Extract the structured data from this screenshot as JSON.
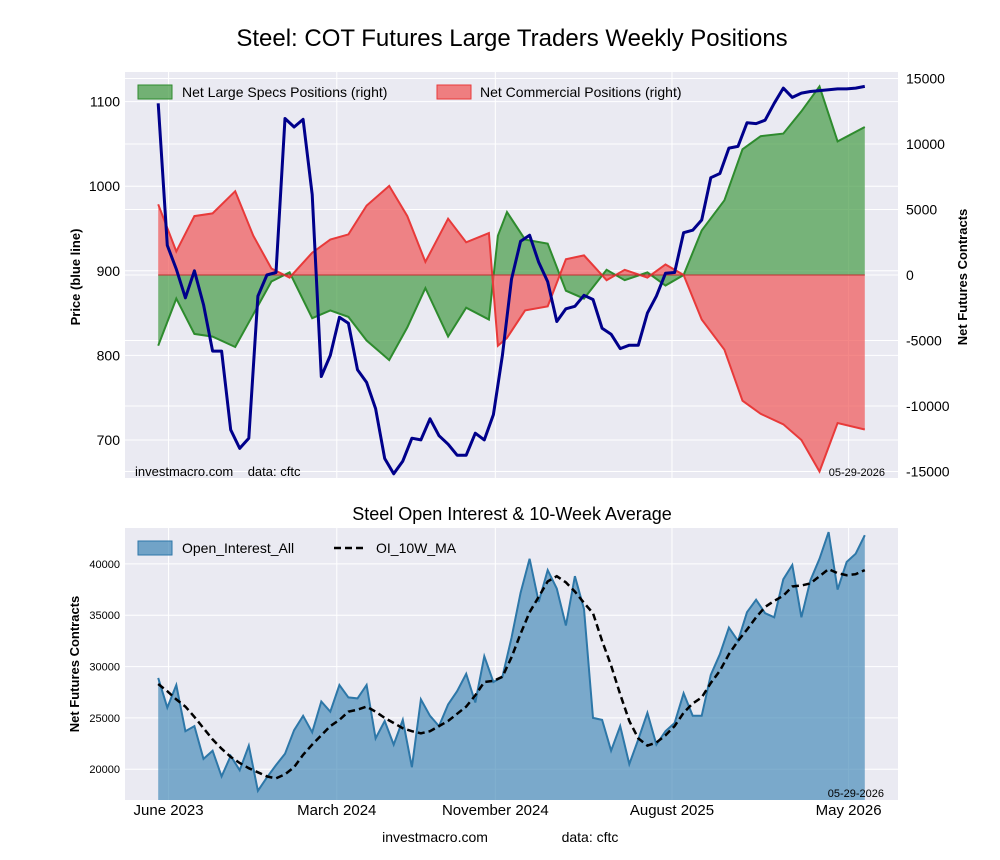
{
  "figure": {
    "title": "Steel: COT Futures Large Traders Weekly Positions",
    "footer_left": "investmacro.com",
    "footer_right": "data: cftc"
  },
  "chart_data": [
    {
      "type": "line+area",
      "title": "",
      "ylabel_left": "Price (blue line)",
      "ylabel_right": "Net Futures Contracts",
      "ylim_left": [
        655,
        1135
      ],
      "ylim_right": [
        -15500,
        15500
      ],
      "yticks_left": [
        700,
        800,
        900,
        1000,
        1100
      ],
      "yticks_right": [
        -15000,
        -10000,
        -5000,
        0,
        5000,
        10000,
        15000
      ],
      "grid": true,
      "legend_position": "top-left",
      "watermark_left": "investmacro.com    data: cftc",
      "date_label": "05-29-2026",
      "x_range": [
        "2023-05-30",
        "2026-05-26"
      ],
      "series": [
        {
          "name": "Net Large Specs Positions (right)",
          "kind": "area",
          "color": "#4a9e4a",
          "x": [
            "2023-05-30",
            "2023-06-27",
            "2023-07-25",
            "2023-08-22",
            "2023-09-26",
            "2023-10-24",
            "2023-11-21",
            "2023-12-19",
            "2024-01-23",
            "2024-02-20",
            "2024-03-19",
            "2024-04-16",
            "2024-05-21",
            "2024-06-18",
            "2024-07-16",
            "2024-08-20",
            "2024-09-17",
            "2024-10-22",
            "2024-11-05",
            "2024-11-19",
            "2024-12-17",
            "2025-01-21",
            "2025-02-18",
            "2025-03-18",
            "2025-04-22",
            "2025-05-20",
            "2025-06-24",
            "2025-07-22",
            "2025-08-19",
            "2025-09-16",
            "2025-10-21",
            "2025-11-18",
            "2025-12-16",
            "2026-01-20",
            "2026-02-17",
            "2026-03-17",
            "2026-04-14",
            "2026-05-26"
          ],
          "values": [
            -5400,
            -1800,
            -4500,
            -4700,
            -5500,
            -3000,
            -500,
            200,
            -3300,
            -2700,
            -3200,
            -5000,
            -6500,
            -4000,
            -1000,
            -4700,
            -2500,
            -3400,
            3000,
            4800,
            2700,
            2400,
            -1200,
            -1800,
            400,
            -400,
            200,
            -800,
            0,
            3400,
            5700,
            9600,
            10600,
            10800,
            12500,
            14400,
            10200,
            11300
          ]
        },
        {
          "name": "Net Commercial Positions (right)",
          "kind": "area",
          "color": "#f05a5a",
          "x": [
            "2023-05-30",
            "2023-06-27",
            "2023-07-25",
            "2023-08-22",
            "2023-09-26",
            "2023-10-24",
            "2023-11-21",
            "2023-12-19",
            "2024-01-23",
            "2024-02-20",
            "2024-03-19",
            "2024-04-16",
            "2024-05-21",
            "2024-06-18",
            "2024-07-16",
            "2024-08-20",
            "2024-09-17",
            "2024-10-22",
            "2024-11-05",
            "2024-11-19",
            "2024-12-17",
            "2025-01-21",
            "2025-02-18",
            "2025-03-18",
            "2025-04-22",
            "2025-05-20",
            "2025-06-24",
            "2025-07-22",
            "2025-08-19",
            "2025-09-16",
            "2025-10-21",
            "2025-11-18",
            "2025-12-16",
            "2026-01-20",
            "2026-02-17",
            "2026-03-17",
            "2026-04-14",
            "2026-05-26"
          ],
          "values": [
            5400,
            1800,
            4500,
            4700,
            6400,
            3000,
            500,
            -200,
            1700,
            2700,
            3100,
            5300,
            6800,
            4500,
            1000,
            4300,
            2500,
            3200,
            -5400,
            -4800,
            -2700,
            -2400,
            1200,
            1500,
            -400,
            400,
            -200,
            800,
            0,
            -3400,
            -5700,
            -9600,
            -10600,
            -11400,
            -12600,
            -15000,
            -11300,
            -11800
          ]
        },
        {
          "name": "Price",
          "kind": "line",
          "axis": "left",
          "color": "#00008b",
          "x": [
            "2023-05-30",
            "2023-06-13",
            "2023-06-27",
            "2023-07-11",
            "2023-07-25",
            "2023-08-08",
            "2023-08-22",
            "2023-09-05",
            "2023-09-19",
            "2023-10-03",
            "2023-10-17",
            "2023-10-31",
            "2023-11-14",
            "2023-11-28",
            "2023-12-12",
            "2023-12-26",
            "2024-01-09",
            "2024-01-23",
            "2024-02-06",
            "2024-02-20",
            "2024-03-05",
            "2024-03-19",
            "2024-04-02",
            "2024-04-16",
            "2024-04-30",
            "2024-05-14",
            "2024-05-28",
            "2024-06-11",
            "2024-06-25",
            "2024-07-09",
            "2024-07-23",
            "2024-08-06",
            "2024-08-20",
            "2024-09-03",
            "2024-09-17",
            "2024-10-01",
            "2024-10-15",
            "2024-10-29",
            "2024-11-12",
            "2024-11-26",
            "2024-12-10",
            "2024-12-24",
            "2025-01-07",
            "2025-01-21",
            "2025-02-04",
            "2025-02-18",
            "2025-03-04",
            "2025-03-18",
            "2025-04-01",
            "2025-04-15",
            "2025-04-29",
            "2025-05-13",
            "2025-05-27",
            "2025-06-10",
            "2025-06-24",
            "2025-07-08",
            "2025-07-22",
            "2025-08-05",
            "2025-08-19",
            "2025-09-02",
            "2025-09-16",
            "2025-09-30",
            "2025-10-14",
            "2025-10-28",
            "2025-11-11",
            "2025-11-25",
            "2025-12-09",
            "2025-12-23",
            "2026-01-06",
            "2026-01-20",
            "2026-02-03",
            "2026-02-17",
            "2026-03-03",
            "2026-03-17",
            "2026-03-31",
            "2026-04-14",
            "2026-04-28",
            "2026-05-12",
            "2026-05-26"
          ],
          "values": [
            1098,
            930,
            902,
            868,
            900,
            860,
            805,
            805,
            712,
            690,
            702,
            870,
            895,
            898,
            1080,
            1070,
            1079,
            990,
            775,
            800,
            845,
            838,
            783,
            768,
            737,
            678,
            660,
            675,
            702,
            700,
            725,
            705,
            695,
            682,
            682,
            708,
            700,
            730,
            800,
            890,
            935,
            942,
            910,
            887,
            840,
            855,
            858,
            871,
            866,
            832,
            825,
            808,
            812,
            812,
            850,
            870,
            897,
            898,
            945,
            948,
            960,
            1010,
            1015,
            1045,
            1047,
            1075,
            1074,
            1078,
            1098,
            1116,
            1105,
            1110,
            1112,
            1113,
            1114,
            1115,
            1115,
            1116,
            1118
          ]
        }
      ]
    },
    {
      "type": "area+line",
      "title": "Steel Open Interest & 10-Week Average",
      "ylabel": "Net Futures Contracts",
      "ylim": [
        17000,
        43500
      ],
      "yticks": [
        20000,
        25000,
        30000,
        35000,
        40000
      ],
      "xticks": [
        "June 2023",
        "March 2024",
        "November 2024",
        "August 2025",
        "May 2026"
      ],
      "grid": true,
      "legend_position": "top-left",
      "date_label": "05-29-2026",
      "series": [
        {
          "name": "Open_Interest_All",
          "kind": "area",
          "color": "#3d85b5",
          "x": [
            "2023-05-30",
            "2023-06-13",
            "2023-06-27",
            "2023-07-11",
            "2023-07-25",
            "2023-08-08",
            "2023-08-22",
            "2023-09-05",
            "2023-09-19",
            "2023-10-03",
            "2023-10-17",
            "2023-10-31",
            "2023-11-14",
            "2023-11-28",
            "2023-12-12",
            "2023-12-26",
            "2024-01-09",
            "2024-01-23",
            "2024-02-06",
            "2024-02-20",
            "2024-03-05",
            "2024-03-19",
            "2024-04-02",
            "2024-04-16",
            "2024-04-30",
            "2024-05-14",
            "2024-05-28",
            "2024-06-11",
            "2024-06-25",
            "2024-07-09",
            "2024-07-23",
            "2024-08-06",
            "2024-08-20",
            "2024-09-03",
            "2024-09-17",
            "2024-10-01",
            "2024-10-15",
            "2024-10-29",
            "2024-11-12",
            "2024-11-26",
            "2024-12-10",
            "2024-12-24",
            "2025-01-07",
            "2025-01-21",
            "2025-02-04",
            "2025-02-18",
            "2025-03-04",
            "2025-03-18",
            "2025-04-01",
            "2025-04-15",
            "2025-04-29",
            "2025-05-13",
            "2025-05-27",
            "2025-06-10",
            "2025-06-24",
            "2025-07-08",
            "2025-07-22",
            "2025-08-05",
            "2025-08-19",
            "2025-09-02",
            "2025-09-16",
            "2025-09-30",
            "2025-10-14",
            "2025-10-28",
            "2025-11-11",
            "2025-11-25",
            "2025-12-09",
            "2025-12-23",
            "2026-01-06",
            "2026-01-20",
            "2026-02-03",
            "2026-02-17",
            "2026-03-03",
            "2026-03-17",
            "2026-03-31",
            "2026-04-14",
            "2026-04-28",
            "2026-05-12",
            "2026-05-26"
          ],
          "values": [
            28900,
            26000,
            28200,
            23700,
            24200,
            21000,
            21800,
            19300,
            21300,
            19900,
            22300,
            17900,
            19200,
            20400,
            21500,
            23800,
            25200,
            23600,
            26600,
            25600,
            28200,
            27000,
            26900,
            28200,
            23000,
            24700,
            22400,
            24800,
            20200,
            26800,
            25200,
            24200,
            26300,
            27600,
            29300,
            26500,
            31000,
            28500,
            29000,
            32800,
            37200,
            40500,
            36300,
            39400,
            37600,
            34000,
            38800,
            35600,
            25000,
            24800,
            21800,
            24200,
            20500,
            22900,
            25500,
            22400,
            23700,
            24500,
            27400,
            25200,
            25200,
            29200,
            31200,
            33800,
            32500,
            35300,
            36500,
            35200,
            34800,
            38500,
            39900,
            34800,
            38400,
            40500,
            43100,
            37500,
            40200,
            41000,
            42800
          ]
        },
        {
          "name": "OI_10W_MA",
          "kind": "line",
          "color": "#000000",
          "dashed": true,
          "x": [
            "2023-05-30",
            "2023-06-13",
            "2023-06-27",
            "2023-07-11",
            "2023-07-25",
            "2023-08-08",
            "2023-08-22",
            "2023-09-05",
            "2023-09-19",
            "2023-10-03",
            "2023-10-17",
            "2023-10-31",
            "2023-11-14",
            "2023-11-28",
            "2023-12-12",
            "2023-12-26",
            "2024-01-09",
            "2024-01-23",
            "2024-02-06",
            "2024-02-20",
            "2024-03-05",
            "2024-03-19",
            "2024-04-02",
            "2024-04-16",
            "2024-04-30",
            "2024-05-14",
            "2024-05-28",
            "2024-06-11",
            "2024-06-25",
            "2024-07-09",
            "2024-07-23",
            "2024-08-06",
            "2024-08-20",
            "2024-09-03",
            "2024-09-17",
            "2024-10-01",
            "2024-10-15",
            "2024-10-29",
            "2024-11-12",
            "2024-11-26",
            "2024-12-10",
            "2024-12-24",
            "2025-01-07",
            "2025-01-21",
            "2025-02-04",
            "2025-02-18",
            "2025-03-04",
            "2025-03-18",
            "2025-04-01",
            "2025-04-15",
            "2025-04-29",
            "2025-05-13",
            "2025-05-27",
            "2025-06-10",
            "2025-06-24",
            "2025-07-08",
            "2025-07-22",
            "2025-08-05",
            "2025-08-19",
            "2025-09-02",
            "2025-09-16",
            "2025-09-30",
            "2025-10-14",
            "2025-10-28",
            "2025-11-11",
            "2025-11-25",
            "2025-12-09",
            "2025-12-23",
            "2026-01-06",
            "2026-01-20",
            "2026-02-03",
            "2026-02-17",
            "2026-03-03",
            "2026-03-17",
            "2026-03-31",
            "2026-04-14",
            "2026-04-28",
            "2026-05-12",
            "2026-05-26"
          ],
          "values": [
            28300,
            27600,
            26800,
            26100,
            25100,
            24000,
            22900,
            22000,
            21200,
            20600,
            20100,
            19700,
            19300,
            19100,
            19500,
            20200,
            21400,
            22400,
            23300,
            24200,
            24800,
            25600,
            25800,
            26100,
            25600,
            25000,
            24500,
            24000,
            23700,
            23500,
            23700,
            24200,
            24700,
            25400,
            26100,
            27200,
            28500,
            28600,
            29000,
            30900,
            33200,
            35300,
            36800,
            38300,
            38800,
            38200,
            37300,
            36200,
            35200,
            32500,
            30100,
            27300,
            24700,
            23000,
            22300,
            22600,
            23300,
            24200,
            25500,
            26400,
            27000,
            28400,
            29600,
            31200,
            32500,
            33600,
            34800,
            35800,
            36400,
            36900,
            37800,
            37900,
            38100,
            38800,
            39500,
            39100,
            38900,
            39000,
            39400
          ]
        }
      ]
    }
  ]
}
